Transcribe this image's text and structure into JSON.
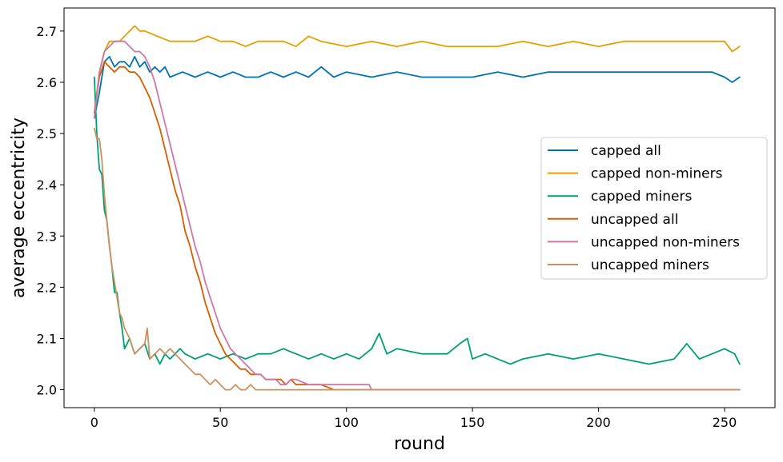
{
  "chart_data": {
    "type": "line",
    "xlabel": "round",
    "ylabel": "average eccentricity",
    "xlim": [
      -12,
      270
    ],
    "ylim": [
      1.965,
      2.745
    ],
    "xticks": [
      0,
      50,
      100,
      150,
      200,
      250
    ],
    "yticks": [
      2.0,
      2.1,
      2.2,
      2.3,
      2.4,
      2.5,
      2.6,
      2.7
    ],
    "ytick_labels": [
      "2.0",
      "2.1",
      "2.2",
      "2.3",
      "2.4",
      "2.5",
      "2.6",
      "2.7"
    ],
    "legend_position": "center-right",
    "grid": false,
    "series": [
      {
        "name": "capped all",
        "color": "#0072b2",
        "points": [
          [
            0,
            2.53
          ],
          [
            2,
            2.58
          ],
          [
            4,
            2.64
          ],
          [
            6,
            2.65
          ],
          [
            8,
            2.63
          ],
          [
            10,
            2.64
          ],
          [
            12,
            2.64
          ],
          [
            14,
            2.63
          ],
          [
            16,
            2.65
          ],
          [
            18,
            2.63
          ],
          [
            20,
            2.64
          ],
          [
            22,
            2.62
          ],
          [
            24,
            2.63
          ],
          [
            26,
            2.62
          ],
          [
            28,
            2.63
          ],
          [
            30,
            2.61
          ],
          [
            35,
            2.62
          ],
          [
            40,
            2.61
          ],
          [
            45,
            2.62
          ],
          [
            50,
            2.61
          ],
          [
            55,
            2.62
          ],
          [
            60,
            2.61
          ],
          [
            65,
            2.61
          ],
          [
            70,
            2.62
          ],
          [
            75,
            2.61
          ],
          [
            80,
            2.62
          ],
          [
            85,
            2.61
          ],
          [
            90,
            2.63
          ],
          [
            95,
            2.61
          ],
          [
            100,
            2.62
          ],
          [
            110,
            2.61
          ],
          [
            120,
            2.62
          ],
          [
            130,
            2.61
          ],
          [
            140,
            2.61
          ],
          [
            150,
            2.61
          ],
          [
            160,
            2.62
          ],
          [
            170,
            2.61
          ],
          [
            180,
            2.62
          ],
          [
            190,
            2.62
          ],
          [
            200,
            2.62
          ],
          [
            210,
            2.62
          ],
          [
            220,
            2.62
          ],
          [
            230,
            2.62
          ],
          [
            240,
            2.62
          ],
          [
            245,
            2.62
          ],
          [
            250,
            2.61
          ],
          [
            253,
            2.6
          ],
          [
            256,
            2.61
          ]
        ]
      },
      {
        "name": "capped non-miners",
        "color": "#e69f00",
        "points": [
          [
            0,
            2.54
          ],
          [
            2,
            2.62
          ],
          [
            4,
            2.66
          ],
          [
            6,
            2.68
          ],
          [
            8,
            2.68
          ],
          [
            10,
            2.68
          ],
          [
            12,
            2.69
          ],
          [
            14,
            2.7
          ],
          [
            16,
            2.71
          ],
          [
            18,
            2.7
          ],
          [
            20,
            2.7
          ],
          [
            25,
            2.69
          ],
          [
            30,
            2.68
          ],
          [
            35,
            2.68
          ],
          [
            40,
            2.68
          ],
          [
            45,
            2.69
          ],
          [
            50,
            2.68
          ],
          [
            55,
            2.68
          ],
          [
            60,
            2.67
          ],
          [
            65,
            2.68
          ],
          [
            70,
            2.68
          ],
          [
            75,
            2.68
          ],
          [
            80,
            2.67
          ],
          [
            85,
            2.69
          ],
          [
            90,
            2.68
          ],
          [
            100,
            2.67
          ],
          [
            110,
            2.68
          ],
          [
            120,
            2.67
          ],
          [
            130,
            2.68
          ],
          [
            140,
            2.67
          ],
          [
            150,
            2.67
          ],
          [
            160,
            2.67
          ],
          [
            170,
            2.68
          ],
          [
            180,
            2.67
          ],
          [
            190,
            2.68
          ],
          [
            200,
            2.67
          ],
          [
            210,
            2.68
          ],
          [
            220,
            2.68
          ],
          [
            230,
            2.68
          ],
          [
            240,
            2.68
          ],
          [
            250,
            2.68
          ],
          [
            253,
            2.66
          ],
          [
            256,
            2.67
          ]
        ]
      },
      {
        "name": "capped miners",
        "color": "#009e73",
        "points": [
          [
            0,
            2.61
          ],
          [
            1,
            2.5
          ],
          [
            2,
            2.43
          ],
          [
            3,
            2.42
          ],
          [
            4,
            2.35
          ],
          [
            5,
            2.33
          ],
          [
            6,
            2.28
          ],
          [
            7,
            2.24
          ],
          [
            8,
            2.19
          ],
          [
            9,
            2.19
          ],
          [
            10,
            2.15
          ],
          [
            11,
            2.12
          ],
          [
            12,
            2.08
          ],
          [
            14,
            2.1
          ],
          [
            16,
            2.07
          ],
          [
            18,
            2.08
          ],
          [
            20,
            2.09
          ],
          [
            22,
            2.06
          ],
          [
            24,
            2.07
          ],
          [
            26,
            2.05
          ],
          [
            28,
            2.07
          ],
          [
            30,
            2.06
          ],
          [
            32,
            2.07
          ],
          [
            34,
            2.08
          ],
          [
            36,
            2.07
          ],
          [
            40,
            2.06
          ],
          [
            45,
            2.07
          ],
          [
            50,
            2.06
          ],
          [
            55,
            2.07
          ],
          [
            60,
            2.06
          ],
          [
            65,
            2.07
          ],
          [
            70,
            2.07
          ],
          [
            75,
            2.08
          ],
          [
            80,
            2.07
          ],
          [
            85,
            2.06
          ],
          [
            90,
            2.07
          ],
          [
            95,
            2.06
          ],
          [
            100,
            2.07
          ],
          [
            105,
            2.06
          ],
          [
            110,
            2.08
          ],
          [
            113,
            2.11
          ],
          [
            116,
            2.07
          ],
          [
            120,
            2.08
          ],
          [
            130,
            2.07
          ],
          [
            140,
            2.07
          ],
          [
            145,
            2.09
          ],
          [
            148,
            2.1
          ],
          [
            150,
            2.06
          ],
          [
            155,
            2.07
          ],
          [
            160,
            2.06
          ],
          [
            165,
            2.05
          ],
          [
            170,
            2.06
          ],
          [
            180,
            2.07
          ],
          [
            190,
            2.06
          ],
          [
            200,
            2.07
          ],
          [
            210,
            2.06
          ],
          [
            220,
            2.05
          ],
          [
            230,
            2.06
          ],
          [
            235,
            2.09
          ],
          [
            240,
            2.06
          ],
          [
            245,
            2.07
          ],
          [
            250,
            2.08
          ],
          [
            254,
            2.07
          ],
          [
            256,
            2.05
          ]
        ]
      },
      {
        "name": "uncapped all",
        "color": "#d55e00",
        "points": [
          [
            0,
            2.54
          ],
          [
            2,
            2.61
          ],
          [
            4,
            2.64
          ],
          [
            6,
            2.63
          ],
          [
            8,
            2.62
          ],
          [
            10,
            2.63
          ],
          [
            12,
            2.63
          ],
          [
            14,
            2.62
          ],
          [
            16,
            2.62
          ],
          [
            18,
            2.61
          ],
          [
            20,
            2.59
          ],
          [
            22,
            2.57
          ],
          [
            24,
            2.54
          ],
          [
            26,
            2.51
          ],
          [
            28,
            2.47
          ],
          [
            30,
            2.43
          ],
          [
            32,
            2.39
          ],
          [
            34,
            2.36
          ],
          [
            36,
            2.31
          ],
          [
            38,
            2.28
          ],
          [
            40,
            2.24
          ],
          [
            42,
            2.21
          ],
          [
            44,
            2.17
          ],
          [
            46,
            2.14
          ],
          [
            48,
            2.11
          ],
          [
            50,
            2.09
          ],
          [
            52,
            2.07
          ],
          [
            54,
            2.06
          ],
          [
            56,
            2.05
          ],
          [
            58,
            2.04
          ],
          [
            60,
            2.04
          ],
          [
            62,
            2.03
          ],
          [
            64,
            2.03
          ],
          [
            66,
            2.03
          ],
          [
            68,
            2.02
          ],
          [
            70,
            2.02
          ],
          [
            72,
            2.02
          ],
          [
            74,
            2.02
          ],
          [
            76,
            2.01
          ],
          [
            78,
            2.02
          ],
          [
            80,
            2.01
          ],
          [
            82,
            2.01
          ],
          [
            85,
            2.01
          ],
          [
            90,
            2.01
          ],
          [
            95,
            2.0
          ],
          [
            100,
            2.0
          ],
          [
            110,
            2.0
          ],
          [
            120,
            2.0
          ],
          [
            150,
            2.0
          ],
          [
            200,
            2.0
          ],
          [
            256,
            2.0
          ]
        ]
      },
      {
        "name": "uncapped non-miners",
        "color": "#cc79a7",
        "points": [
          [
            0,
            2.53
          ],
          [
            2,
            2.62
          ],
          [
            4,
            2.66
          ],
          [
            6,
            2.67
          ],
          [
            8,
            2.68
          ],
          [
            10,
            2.68
          ],
          [
            12,
            2.68
          ],
          [
            14,
            2.67
          ],
          [
            16,
            2.66
          ],
          [
            18,
            2.66
          ],
          [
            20,
            2.65
          ],
          [
            22,
            2.63
          ],
          [
            24,
            2.6
          ],
          [
            26,
            2.56
          ],
          [
            28,
            2.52
          ],
          [
            30,
            2.48
          ],
          [
            32,
            2.44
          ],
          [
            34,
            2.4
          ],
          [
            36,
            2.36
          ],
          [
            38,
            2.32
          ],
          [
            40,
            2.28
          ],
          [
            42,
            2.25
          ],
          [
            44,
            2.21
          ],
          [
            46,
            2.18
          ],
          [
            48,
            2.15
          ],
          [
            50,
            2.12
          ],
          [
            52,
            2.1
          ],
          [
            54,
            2.08
          ],
          [
            56,
            2.07
          ],
          [
            58,
            2.06
          ],
          [
            60,
            2.05
          ],
          [
            62,
            2.04
          ],
          [
            64,
            2.03
          ],
          [
            66,
            2.03
          ],
          [
            68,
            2.02
          ],
          [
            70,
            2.02
          ],
          [
            72,
            2.02
          ],
          [
            74,
            2.01
          ],
          [
            76,
            2.01
          ],
          [
            78,
            2.02
          ],
          [
            80,
            2.02
          ],
          [
            85,
            2.01
          ],
          [
            90,
            2.01
          ],
          [
            95,
            2.01
          ],
          [
            100,
            2.01
          ],
          [
            105,
            2.01
          ],
          [
            109,
            2.01
          ],
          [
            110,
            2.0
          ],
          [
            150,
            2.0
          ],
          [
            200,
            2.0
          ],
          [
            256,
            2.0
          ]
        ]
      },
      {
        "name": "uncapped miners",
        "color": "#ca9161",
        "points": [
          [
            0,
            2.51
          ],
          [
            1,
            2.49
          ],
          [
            2,
            2.49
          ],
          [
            3,
            2.45
          ],
          [
            4,
            2.38
          ],
          [
            5,
            2.33
          ],
          [
            6,
            2.28
          ],
          [
            7,
            2.24
          ],
          [
            8,
            2.21
          ],
          [
            9,
            2.18
          ],
          [
            10,
            2.15
          ],
          [
            11,
            2.14
          ],
          [
            12,
            2.12
          ],
          [
            14,
            2.1
          ],
          [
            16,
            2.07
          ],
          [
            18,
            2.08
          ],
          [
            20,
            2.09
          ],
          [
            21,
            2.12
          ],
          [
            22,
            2.06
          ],
          [
            24,
            2.07
          ],
          [
            26,
            2.08
          ],
          [
            28,
            2.07
          ],
          [
            30,
            2.08
          ],
          [
            32,
            2.07
          ],
          [
            34,
            2.06
          ],
          [
            36,
            2.05
          ],
          [
            38,
            2.04
          ],
          [
            40,
            2.03
          ],
          [
            42,
            2.03
          ],
          [
            44,
            2.02
          ],
          [
            46,
            2.01
          ],
          [
            48,
            2.02
          ],
          [
            50,
            2.01
          ],
          [
            52,
            2.0
          ],
          [
            54,
            2.0
          ],
          [
            56,
            2.01
          ],
          [
            58,
            2.0
          ],
          [
            60,
            2.0
          ],
          [
            62,
            2.01
          ],
          [
            64,
            2.0
          ],
          [
            70,
            2.0
          ],
          [
            100,
            2.0
          ],
          [
            150,
            2.0
          ],
          [
            200,
            2.0
          ],
          [
            256,
            2.0
          ]
        ]
      }
    ]
  }
}
